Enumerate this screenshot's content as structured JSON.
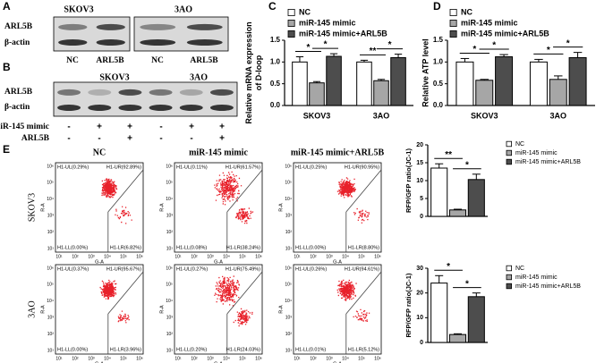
{
  "blots": {
    "A": {
      "label": "A",
      "groups": [
        "SKOV3",
        "3AO"
      ],
      "rows": [
        "ARL5B",
        "β-actin"
      ],
      "lanes": [
        "NC",
        "ARL5B",
        "NC",
        "ARL5B"
      ]
    },
    "B": {
      "label": "B",
      "groups": [
        "SKOV3",
        "3AO"
      ],
      "rows": [
        "ARL5B",
        "β-actin"
      ],
      "conditions": [
        {
          "name": "miR-145 mimic",
          "signs": [
            "-",
            "+",
            "+",
            "-",
            "+",
            "+"
          ]
        },
        {
          "name": "ARL5B",
          "signs": [
            "-",
            "-",
            "+",
            "-",
            "-",
            "+"
          ]
        }
      ]
    }
  },
  "flow": {
    "label": "E",
    "columns": [
      "NC",
      "miR-145 mimic",
      "miR-145 mimic+ARL5B"
    ],
    "rows": [
      "SKOV3",
      "3AO"
    ],
    "x_axis_label": "G-A",
    "y_axis_label": "R-A",
    "ticks": [
      "10¹",
      "10²",
      "10³",
      "10⁴",
      "10⁵",
      "10⁶"
    ],
    "plots": [
      [
        {
          "ul": "H1-UL(0.29%)",
          "ur": "H1-UR(92.89%)",
          "ll": "H1-LL(0.00%)",
          "lr": "H1-LR(6.82%)"
        },
        {
          "ul": "H1-UL(0.11%)",
          "ur": "H1-UR(61.57%)",
          "ll": "H1-LL(0.08%)",
          "lr": "H1-LR(38.24%)"
        },
        {
          "ul": "H1-UL(0.25%)",
          "ur": "H1-UR(90.95%)",
          "ll": "H1-LL(0.00%)",
          "lr": "H1-LR(8.80%)"
        }
      ],
      [
        {
          "ul": "H1-UL(0.37%)",
          "ur": "H1-UR(95.67%)",
          "ll": "H1-LL(0.00%)",
          "lr": "H1-LR(3.96%)"
        },
        {
          "ul": "H1-UL(0.27%)",
          "ur": "H1-UR(75.49%)",
          "ll": "H1-LL(0.20%)",
          "lr": "H1-LR(24.03%)"
        },
        {
          "ul": "H1-UL(0.26%)",
          "ur": "H1-UR(94.61%)",
          "ll": "H1-LL(0.01%)",
          "lr": "H1-LR(5.12%)"
        }
      ]
    ]
  },
  "chart_data": [
    {
      "type": "bar",
      "panel": "C",
      "ylabel": [
        "Relative mRNA expression",
        "of D-loop"
      ],
      "categories": [
        "SKOV3",
        "3AO"
      ],
      "series": [
        {
          "name": "NC",
          "color": "#ffffff",
          "values": [
            1.0,
            1.0
          ],
          "errors": [
            0.12,
            0.04
          ]
        },
        {
          "name": "miR-145 mimic",
          "color": "#a6a6a6",
          "values": [
            0.52,
            0.57
          ],
          "errors": [
            0.03,
            0.03
          ]
        },
        {
          "name": "miR-145 mimic+ARL5B",
          "color": "#4d4d4d",
          "values": [
            1.13,
            1.1
          ],
          "errors": [
            0.06,
            0.08
          ]
        }
      ],
      "ylim": [
        0,
        1.5
      ],
      "yticks": [
        {
          "value": 0,
          "label": "0.0"
        },
        0.5,
        {
          "value": 1,
          "label": "1.0"
        },
        1.5
      ],
      "annotations": [
        "*",
        "*",
        "**",
        "*"
      ]
    },
    {
      "type": "bar",
      "panel": "D",
      "ylabel": [
        "Relative ATP level"
      ],
      "categories": [
        "SKOV3",
        "3AO"
      ],
      "series": [
        {
          "name": "NC",
          "color": "#ffffff",
          "values": [
            1.0,
            1.0
          ],
          "errors": [
            0.08,
            0.06
          ]
        },
        {
          "name": "miR-145 mimic",
          "color": "#a6a6a6",
          "values": [
            0.58,
            0.6
          ],
          "errors": [
            0.02,
            0.08
          ]
        },
        {
          "name": "miR-145 mimic+ARL5B",
          "color": "#4d4d4d",
          "values": [
            1.12,
            1.1
          ],
          "errors": [
            0.05,
            0.12
          ]
        }
      ],
      "ylim": [
        0,
        1.5
      ],
      "yticks": [
        {
          "value": 0,
          "label": "0.0"
        },
        0.5,
        {
          "value": 1,
          "label": "1.0"
        },
        1.5
      ],
      "annotations": [
        "*",
        "*",
        "*",
        "*"
      ]
    },
    {
      "type": "bar",
      "ylabel": [
        "RFP/GFP ratio(JC-1)"
      ],
      "series": [
        {
          "name": "NC",
          "color": "#ffffff",
          "values": [
            13.5
          ],
          "errors": [
            1.2
          ]
        },
        {
          "name": "miR-145 mimic",
          "color": "#a6a6a6",
          "values": [
            1.8
          ],
          "errors": [
            0.2
          ]
        },
        {
          "name": "miR-145 mimic+ARL5B",
          "color": "#4d4d4d",
          "values": [
            10.3
          ],
          "errors": [
            1.5
          ]
        }
      ],
      "ylim": [
        0,
        20
      ],
      "yticks": [
        0,
        5,
        10,
        15,
        20
      ],
      "annotations": [
        "**",
        "*"
      ]
    },
    {
      "type": "bar",
      "ylabel": [
        "RFP/GFP ratio(JC-1)"
      ],
      "series": [
        {
          "name": "NC",
          "color": "#ffffff",
          "values": [
            24
          ],
          "errors": [
            3
          ]
        },
        {
          "name": "miR-145 mimic",
          "color": "#a6a6a6",
          "values": [
            3.2
          ],
          "errors": [
            0.3
          ]
        },
        {
          "name": "miR-145 mimic+ARL5B",
          "color": "#4d4d4d",
          "values": [
            18.5
          ],
          "errors": [
            1.5
          ]
        }
      ],
      "ylim": [
        0,
        30
      ],
      "yticks": [
        0,
        10,
        20,
        30
      ],
      "annotations": [
        "*",
        "*"
      ]
    }
  ]
}
